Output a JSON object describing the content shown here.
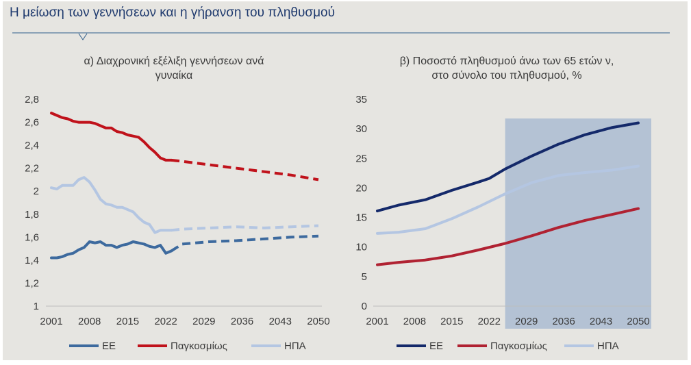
{
  "page_title": "Η μείωση των γεννήσεων και η γήρανση του πληθυσμού",
  "colors": {
    "ee": "#3d6a9e",
    "world": "#c0121b",
    "usa": "#b4c6e2",
    "ee_right": "#14296a",
    "world_right": "#b02232",
    "projection_shade": "#b4c2d4",
    "title": "#1f3a6e"
  },
  "chart_data": [
    {
      "type": "line",
      "title_lines": [
        "α)    Διαχρονική εξέλιξη γεννήσεων ανά",
        "γυναίκα"
      ],
      "xlabel": "",
      "ylabel": "",
      "x_ticks": [
        2001,
        2008,
        2015,
        2022,
        2029,
        2036,
        2043,
        2050
      ],
      "y_ticks": [
        "1",
        "1,2",
        "1,4",
        "1,6",
        "1,8",
        "2",
        "2,2",
        "2,4",
        "2,6",
        "2,8"
      ],
      "ylim": [
        1,
        2.8
      ],
      "xlim": [
        2001,
        2050
      ],
      "grid": false,
      "legend": "bottom",
      "series": [
        {
          "name": "ΕΕ",
          "color_key": "ee",
          "solid": [
            [
              2001,
              1.42
            ],
            [
              2002,
              1.42
            ],
            [
              2003,
              1.43
            ],
            [
              2004,
              1.45
            ],
            [
              2005,
              1.46
            ],
            [
              2006,
              1.49
            ],
            [
              2007,
              1.51
            ],
            [
              2008,
              1.56
            ],
            [
              2009,
              1.55
            ],
            [
              2010,
              1.56
            ],
            [
              2011,
              1.53
            ],
            [
              2012,
              1.53
            ],
            [
              2013,
              1.51
            ],
            [
              2014,
              1.53
            ],
            [
              2015,
              1.54
            ],
            [
              2016,
              1.56
            ],
            [
              2017,
              1.55
            ],
            [
              2018,
              1.54
            ],
            [
              2019,
              1.52
            ],
            [
              2020,
              1.51
            ],
            [
              2021,
              1.53
            ],
            [
              2022,
              1.46
            ],
            [
              2023,
              1.48
            ]
          ],
          "projected": [
            [
              2023,
              1.48
            ],
            [
              2025,
              1.54
            ],
            [
              2030,
              1.56
            ],
            [
              2035,
              1.57
            ],
            [
              2040,
              1.585
            ],
            [
              2045,
              1.6
            ],
            [
              2050,
              1.61
            ]
          ]
        },
        {
          "name": "Παγκοσμίως",
          "color_key": "world",
          "solid": [
            [
              2001,
              2.68
            ],
            [
              2002,
              2.66
            ],
            [
              2003,
              2.64
            ],
            [
              2004,
              2.63
            ],
            [
              2005,
              2.61
            ],
            [
              2006,
              2.6
            ],
            [
              2007,
              2.6
            ],
            [
              2008,
              2.6
            ],
            [
              2009,
              2.59
            ],
            [
              2010,
              2.57
            ],
            [
              2011,
              2.55
            ],
            [
              2012,
              2.55
            ],
            [
              2013,
              2.52
            ],
            [
              2014,
              2.51
            ],
            [
              2015,
              2.49
            ],
            [
              2016,
              2.48
            ],
            [
              2017,
              2.47
            ],
            [
              2018,
              2.43
            ],
            [
              2019,
              2.38
            ],
            [
              2020,
              2.34
            ],
            [
              2021,
              2.29
            ],
            [
              2022,
              2.27
            ],
            [
              2023,
              2.27
            ]
          ],
          "projected": [
            [
              2023,
              2.27
            ],
            [
              2025,
              2.26
            ],
            [
              2030,
              2.23
            ],
            [
              2035,
              2.2
            ],
            [
              2040,
              2.17
            ],
            [
              2045,
              2.14
            ],
            [
              2050,
              2.1
            ]
          ]
        },
        {
          "name": "ΗΠΑ",
          "color_key": "usa",
          "solid": [
            [
              2001,
              2.03
            ],
            [
              2002,
              2.02
            ],
            [
              2003,
              2.05
            ],
            [
              2004,
              2.05
            ],
            [
              2005,
              2.05
            ],
            [
              2006,
              2.1
            ],
            [
              2007,
              2.12
            ],
            [
              2008,
              2.08
            ],
            [
              2009,
              2.01
            ],
            [
              2010,
              1.93
            ],
            [
              2011,
              1.89
            ],
            [
              2012,
              1.88
            ],
            [
              2013,
              1.86
            ],
            [
              2014,
              1.86
            ],
            [
              2015,
              1.84
            ],
            [
              2016,
              1.82
            ],
            [
              2017,
              1.77
            ],
            [
              2018,
              1.73
            ],
            [
              2019,
              1.71
            ],
            [
              2020,
              1.64
            ],
            [
              2021,
              1.66
            ],
            [
              2022,
              1.66
            ],
            [
              2023,
              1.66
            ]
          ],
          "projected": [
            [
              2023,
              1.66
            ],
            [
              2025,
              1.67
            ],
            [
              2030,
              1.68
            ],
            [
              2035,
              1.69
            ],
            [
              2040,
              1.68
            ],
            [
              2045,
              1.69
            ],
            [
              2050,
              1.7
            ]
          ]
        }
      ]
    },
    {
      "type": "line",
      "title_lines": [
        "β) Ποσοστό πληθυσμού άνω των 65 ετών ν,",
        "στο σύνολο του πληθυσμού, %"
      ],
      "xlabel": "",
      "ylabel": "",
      "x_ticks": [
        2001,
        2008,
        2015,
        2022,
        2029,
        2036,
        2043,
        2050
      ],
      "y_ticks": [
        "0",
        "5",
        "10",
        "15",
        "20",
        "25",
        "30",
        "35"
      ],
      "ylim": [
        0,
        35
      ],
      "xlim": [
        2001,
        2050
      ],
      "projection_shade_from": 2025,
      "grid": false,
      "legend": "bottom",
      "series": [
        {
          "name": "ΕΕ",
          "color_key": "ee_right",
          "points": [
            [
              2001,
              16.1
            ],
            [
              2005,
              17.1
            ],
            [
              2010,
              18.0
            ],
            [
              2015,
              19.6
            ],
            [
              2020,
              21.0
            ],
            [
              2022,
              21.6
            ],
            [
              2025,
              23.2
            ],
            [
              2030,
              25.4
            ],
            [
              2035,
              27.4
            ],
            [
              2040,
              29.0
            ],
            [
              2045,
              30.2
            ],
            [
              2050,
              31.0
            ]
          ]
        },
        {
          "name": "Παγκοσμίως",
          "color_key": "world_right",
          "points": [
            [
              2001,
              7.0
            ],
            [
              2005,
              7.4
            ],
            [
              2010,
              7.8
            ],
            [
              2015,
              8.5
            ],
            [
              2020,
              9.5
            ],
            [
              2025,
              10.6
            ],
            [
              2030,
              11.9
            ],
            [
              2035,
              13.3
            ],
            [
              2040,
              14.5
            ],
            [
              2045,
              15.5
            ],
            [
              2050,
              16.5
            ]
          ]
        },
        {
          "name": "ΗΠΑ",
          "color_key": "usa",
          "points": [
            [
              2001,
              12.3
            ],
            [
              2005,
              12.5
            ],
            [
              2010,
              13.1
            ],
            [
              2015,
              14.8
            ],
            [
              2020,
              16.8
            ],
            [
              2025,
              19.0
            ],
            [
              2030,
              20.9
            ],
            [
              2035,
              22.1
            ],
            [
              2040,
              22.6
            ],
            [
              2045,
              23.0
            ],
            [
              2050,
              23.7
            ]
          ]
        }
      ]
    }
  ]
}
